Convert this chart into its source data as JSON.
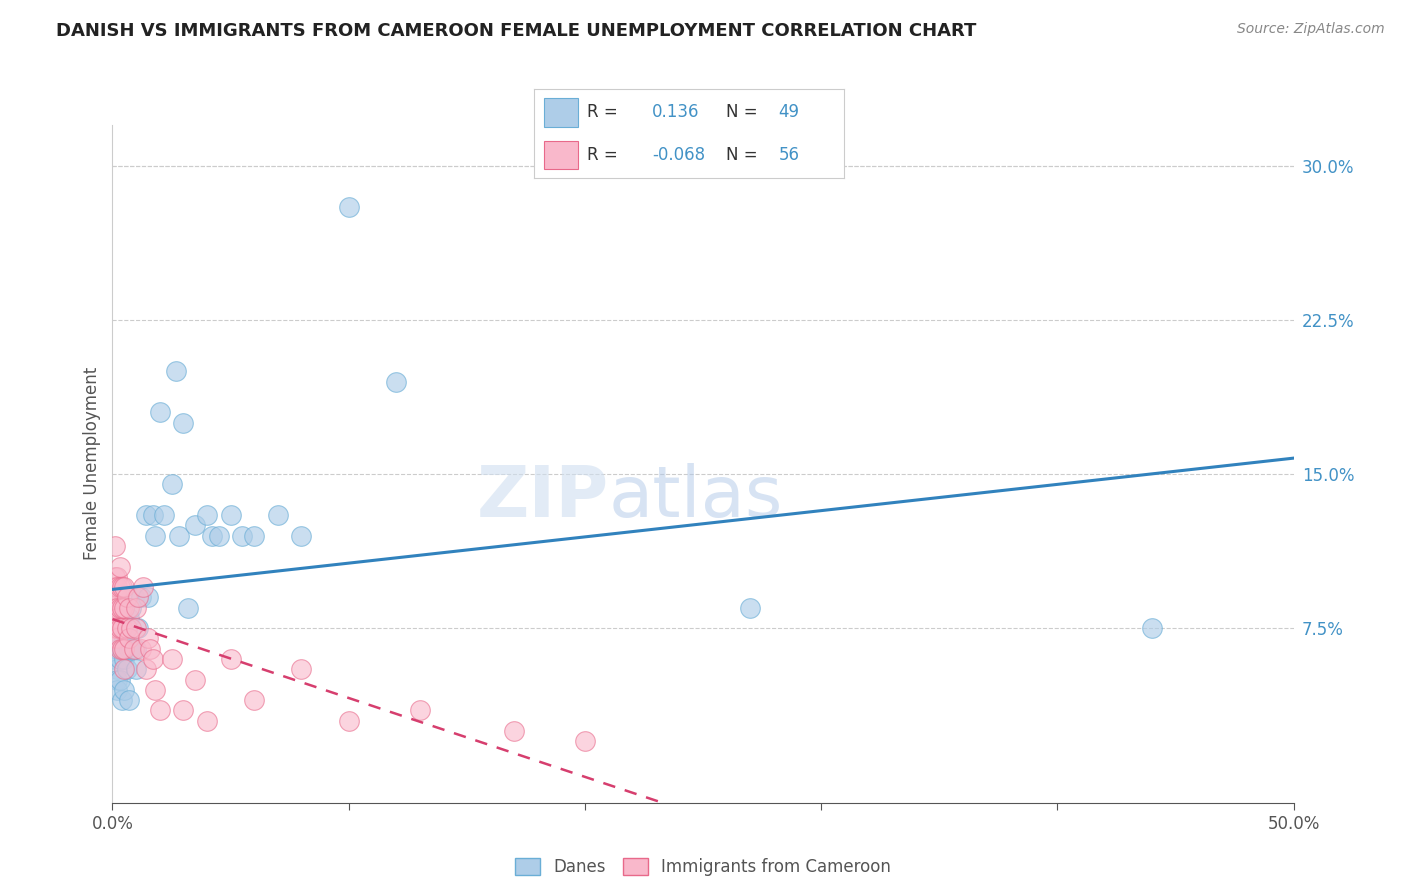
{
  "title": "DANISH VS IMMIGRANTS FROM CAMEROON FEMALE UNEMPLOYMENT CORRELATION CHART",
  "source": "Source: ZipAtlas.com",
  "ylabel": "Female Unemployment",
  "xlim": [
    0.0,
    0.5
  ],
  "ylim": [
    -0.01,
    0.32
  ],
  "xticks": [
    0.0,
    0.1,
    0.2,
    0.3,
    0.4,
    0.5
  ],
  "xticklabels": [
    "0.0%",
    "",
    "",
    "",
    "",
    "50.0%"
  ],
  "yticks_right": [
    0.075,
    0.15,
    0.225,
    0.3
  ],
  "yticklabels_right": [
    "7.5%",
    "15.0%",
    "22.5%",
    "30.0%"
  ],
  "blue_marker_color": "#aecde8",
  "blue_edge_color": "#6aaed6",
  "pink_marker_color": "#f9b8cb",
  "pink_edge_color": "#e8698a",
  "trend_blue": "#3182bd",
  "trend_pink": "#d63e6e",
  "text_blue": "#4292c6",
  "grid_color": "#cccccc",
  "background_color": "#ffffff",
  "danes_x": [
    0.001,
    0.002,
    0.002,
    0.002,
    0.002,
    0.003,
    0.003,
    0.003,
    0.004,
    0.004,
    0.005,
    0.005,
    0.005,
    0.006,
    0.006,
    0.007,
    0.007,
    0.007,
    0.008,
    0.008,
    0.009,
    0.01,
    0.01,
    0.011,
    0.012,
    0.014,
    0.015,
    0.017,
    0.018,
    0.02,
    0.022,
    0.025,
    0.027,
    0.028,
    0.03,
    0.032,
    0.035,
    0.04,
    0.042,
    0.045,
    0.05,
    0.055,
    0.06,
    0.07,
    0.08,
    0.1,
    0.12,
    0.27,
    0.44
  ],
  "danes_y": [
    0.06,
    0.055,
    0.05,
    0.065,
    0.045,
    0.07,
    0.06,
    0.05,
    0.065,
    0.04,
    0.07,
    0.06,
    0.045,
    0.075,
    0.055,
    0.08,
    0.065,
    0.04,
    0.085,
    0.065,
    0.09,
    0.065,
    0.055,
    0.075,
    0.09,
    0.13,
    0.09,
    0.13,
    0.12,
    0.18,
    0.13,
    0.145,
    0.2,
    0.12,
    0.175,
    0.085,
    0.125,
    0.13,
    0.12,
    0.12,
    0.13,
    0.12,
    0.12,
    0.13,
    0.12,
    0.28,
    0.195,
    0.085,
    0.075
  ],
  "cameroon_x": [
    0.001,
    0.001,
    0.001,
    0.001,
    0.001,
    0.001,
    0.001,
    0.001,
    0.002,
    0.002,
    0.002,
    0.002,
    0.002,
    0.002,
    0.002,
    0.003,
    0.003,
    0.003,
    0.003,
    0.003,
    0.004,
    0.004,
    0.004,
    0.004,
    0.005,
    0.005,
    0.005,
    0.005,
    0.006,
    0.006,
    0.007,
    0.007,
    0.008,
    0.009,
    0.01,
    0.01,
    0.011,
    0.012,
    0.013,
    0.014,
    0.015,
    0.016,
    0.017,
    0.018,
    0.02,
    0.025,
    0.03,
    0.035,
    0.04,
    0.05,
    0.06,
    0.08,
    0.1,
    0.13,
    0.17,
    0.2
  ],
  "cameroon_y": [
    0.115,
    0.1,
    0.095,
    0.09,
    0.085,
    0.08,
    0.075,
    0.07,
    0.1,
    0.095,
    0.09,
    0.085,
    0.08,
    0.075,
    0.07,
    0.105,
    0.095,
    0.085,
    0.075,
    0.065,
    0.095,
    0.085,
    0.075,
    0.065,
    0.095,
    0.085,
    0.065,
    0.055,
    0.09,
    0.075,
    0.085,
    0.07,
    0.075,
    0.065,
    0.085,
    0.075,
    0.09,
    0.065,
    0.095,
    0.055,
    0.07,
    0.065,
    0.06,
    0.045,
    0.035,
    0.06,
    0.035,
    0.05,
    0.03,
    0.06,
    0.04,
    0.055,
    0.03,
    0.035,
    0.025,
    0.02
  ]
}
